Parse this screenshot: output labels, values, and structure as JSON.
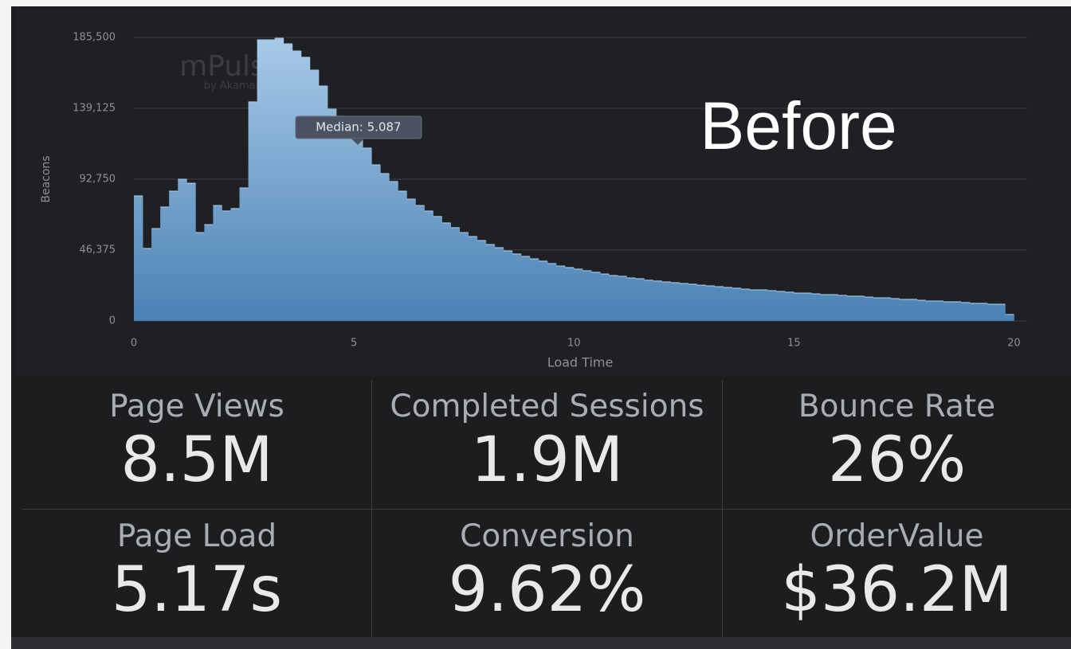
{
  "chart_data": {
    "type": "histogram",
    "y_label": "Beacons",
    "x_label": "Load Time",
    "watermark": "mPulse",
    "watermark_sub": "by Akamai",
    "annotation": {
      "label": "Median: 5.087",
      "x": 5.087
    },
    "color": "#5b93c4",
    "grid": true,
    "xlim": [
      0,
      20.3
    ],
    "ylim": [
      0,
      185500
    ],
    "xticks": [
      0,
      5,
      10,
      15,
      20
    ],
    "yticks": [
      0,
      {
        "value": 46375,
        "label": "46,375"
      },
      {
        "value": 92750,
        "label": "92,750"
      },
      {
        "value": 139125,
        "label": "139,125"
      },
      {
        "value": 185500,
        "label": "185,500"
      }
    ],
    "bins": [
      0,
      0.2,
      0.4,
      0.6,
      0.8,
      1,
      1.2,
      1.4,
      1.6,
      1.8,
      2,
      2.2,
      2.4,
      2.6,
      2.8,
      3,
      3.2,
      3.4,
      3.6,
      3.8,
      4,
      4.2,
      4.4,
      4.6,
      4.8,
      5,
      5.2,
      5.4,
      5.6,
      5.8,
      6,
      6.2,
      6.4,
      6.6,
      6.8,
      7,
      7.2,
      7.4,
      7.6,
      7.8,
      8,
      8.2,
      8.4,
      8.6,
      8.8,
      9,
      9.2,
      9.4,
      9.6,
      9.8,
      10,
      10.2,
      10.4,
      10.6,
      10.8,
      11,
      11.2,
      11.4,
      11.6,
      11.8,
      12,
      12.2,
      12.4,
      12.6,
      12.8,
      13,
      13.2,
      13.4,
      13.6,
      13.8,
      14,
      14.2,
      14.4,
      14.6,
      14.8,
      15,
      15.2,
      15.4,
      15.6,
      15.8,
      16,
      16.2,
      16.4,
      16.6,
      16.8,
      17,
      17.2,
      17.4,
      17.6,
      17.8,
      18,
      18.2,
      18.4,
      18.6,
      18.8,
      19,
      19.2,
      19.4,
      19.6,
      19.8,
      20
    ],
    "counts": [
      81800,
      47400,
      60400,
      74500,
      84900,
      92700,
      90100,
      57800,
      63000,
      75500,
      71900,
      73500,
      87000,
      143300,
      183900,
      183900,
      185000,
      181300,
      176600,
      172500,
      164100,
      153700,
      138600,
      133900,
      126600,
      118800,
      113100,
      102100,
      96400,
      91200,
      84900,
      79700,
      75500,
      71900,
      68300,
      64100,
      61000,
      57800,
      55200,
      52600,
      50000,
      47900,
      45800,
      43800,
      42200,
      40600,
      39100,
      37500,
      35900,
      34900,
      33900,
      32800,
      31800,
      30700,
      29700,
      29200,
      28100,
      27600,
      26600,
      26100,
      25500,
      25000,
      24500,
      24000,
      23400,
      22900,
      22400,
      21900,
      21400,
      20800,
      20300,
      20300,
      19800,
      19300,
      18800,
      18200,
      18200,
      17700,
      17200,
      17200,
      16700,
      16200,
      16200,
      15600,
      15100,
      15100,
      14600,
      14100,
      14100,
      13500,
      13000,
      13000,
      12500,
      12500,
      12000,
      11500,
      11500,
      10900,
      10900,
      4200
    ]
  },
  "overlay_text": "Before",
  "tiles": [
    {
      "label": "Page Views",
      "value": "8.5M"
    },
    {
      "label": "Completed Sessions",
      "value": "1.9M"
    },
    {
      "label": "Bounce Rate",
      "value": "26%"
    },
    {
      "label": "Page Load",
      "value": "5.17s"
    },
    {
      "label": "Conversion",
      "value": "9.62%"
    },
    {
      "label": "OrderValue",
      "value": "$36.2M"
    }
  ]
}
